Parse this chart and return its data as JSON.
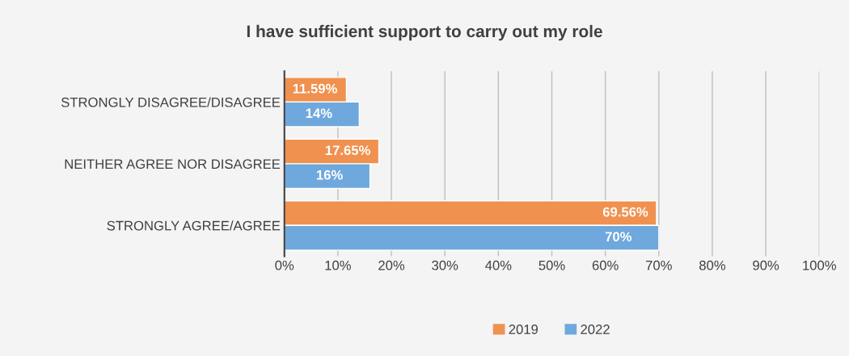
{
  "chart_data": {
    "type": "bar",
    "orientation": "horizontal",
    "title": "I have sufficient support to carry out my role",
    "categories": [
      "STRONGLY DISAGREE/DISAGREE",
      "NEITHER AGREE NOR DISAGREE",
      "STRONGLY AGREE/AGREE"
    ],
    "series": [
      {
        "name": "2019",
        "color": "#f0914f",
        "values": [
          11.59,
          17.65,
          69.56
        ],
        "value_labels": [
          "11.59%",
          "17.65%",
          "69.56%"
        ]
      },
      {
        "name": "2022",
        "color": "#6fa8dc",
        "values": [
          14,
          16,
          70
        ],
        "value_labels": [
          "14%",
          "16%",
          "70%"
        ]
      }
    ],
    "xlim": [
      0,
      100
    ],
    "xticks": [
      {
        "value": 0,
        "label": "0%"
      },
      {
        "value": 10,
        "label": "10%"
      },
      {
        "value": 20,
        "label": "20%"
      },
      {
        "value": 30,
        "label": "30%"
      },
      {
        "value": 40,
        "label": "40%"
      },
      {
        "value": 50,
        "label": "50%"
      },
      {
        "value": 60,
        "label": "60%"
      },
      {
        "value": 70,
        "label": "70%"
      },
      {
        "value": 80,
        "label": "80%"
      },
      {
        "value": 90,
        "label": "90%"
      },
      {
        "value": 100,
        "label": "100%"
      }
    ],
    "grid": "x",
    "legend": "bottom"
  }
}
